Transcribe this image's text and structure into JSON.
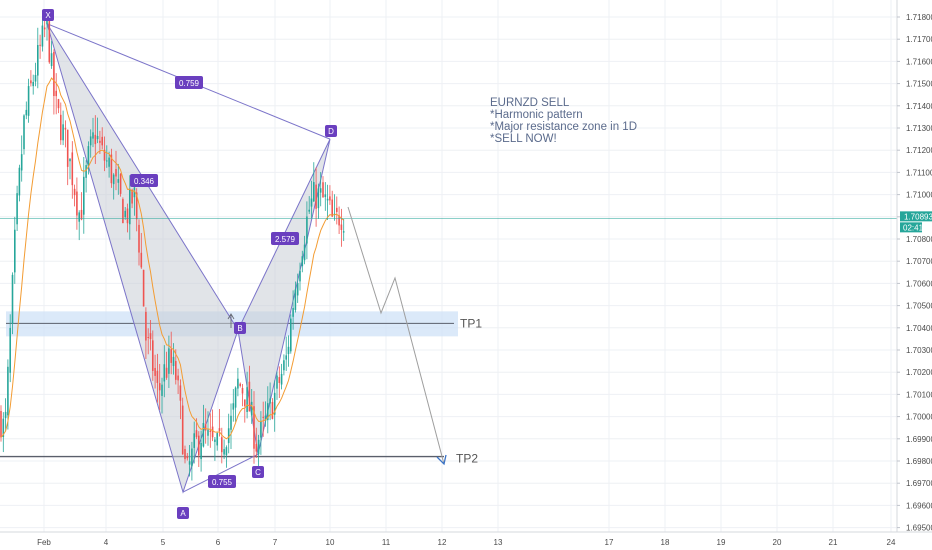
{
  "chart_data": {
    "type": "candlestick",
    "symbol": "EURNZD",
    "colors": {
      "up": "#26a69a",
      "down": "#ef5350",
      "pattern_line": "#7b74c9",
      "pattern_fill": "#c9cdd6",
      "label_bg": "#6a3fbf",
      "ema": "#f39c33",
      "tp_zone": "#cfe2f7",
      "price_line": "#26a69a",
      "forecast": "#9e9e9e",
      "target_arrow": "#3a73c6"
    },
    "x_ticks": [
      "Feb",
      "4",
      "5",
      "6",
      "7",
      "10",
      "11",
      "12",
      "13",
      "17",
      "18",
      "19",
      "20",
      "21",
      "24"
    ],
    "y_ticks": [
      "1.71800",
      "1.71700",
      "1.71600",
      "1.71500",
      "1.71400",
      "1.71300",
      "1.71200",
      "1.71100",
      "1.71000",
      "1.70900",
      "1.70800",
      "1.70700",
      "1.70600",
      "1.70500",
      "1.70400",
      "1.70300",
      "1.70200",
      "1.70100",
      "1.70000",
      "1.69900",
      "1.69800",
      "1.69700",
      "1.69600",
      "1.69500"
    ],
    "y_range": [
      1.695,
      1.7185
    ],
    "current_price": {
      "value": "1.70893",
      "countdown": "02:41"
    },
    "harmonic_points": [
      {
        "label": "X",
        "time": "2020-02-03 09:00",
        "price": 1.7177
      },
      {
        "label": "A",
        "time": "2020-02-05 22:00",
        "price": 1.6966
      },
      {
        "label": "B",
        "time": "2020-02-06 07:00",
        "price": 1.7039
      },
      {
        "label": "C",
        "time": "2020-02-06 20:00",
        "price": 1.6983
      },
      {
        "label": "D",
        "time": "2020-02-10 00:00",
        "price": 1.7125
      }
    ],
    "ratios": [
      {
        "text": "0.759",
        "between": "X-D"
      },
      {
        "text": "0.346",
        "between": "X-B"
      },
      {
        "text": "2.579",
        "between": "B-D"
      },
      {
        "text": "0.755",
        "between": "A-C"
      }
    ],
    "targets": [
      {
        "name": "TP1",
        "price": 1.7042
      },
      {
        "name": "TP2",
        "price": 1.6982
      }
    ],
    "annotation": [
      "EURNZD SELL",
      "*Harmonic pattern",
      "*Major resistance zone in 1D",
      "*SELL NOW!"
    ],
    "anchors": [
      {
        "x": 0,
        "price": 1.7
      },
      {
        "x": 5,
        "price": 1.6993
      },
      {
        "x": 10,
        "price": 1.7035
      },
      {
        "x": 16,
        "price": 1.7088
      },
      {
        "x": 24,
        "price": 1.7132
      },
      {
        "x": 32,
        "price": 1.715
      },
      {
        "x": 40,
        "price": 1.7165
      },
      {
        "x": 47,
        "price": 1.7177
      },
      {
        "x": 55,
        "price": 1.714
      },
      {
        "x": 63,
        "price": 1.7128
      },
      {
        "x": 72,
        "price": 1.711
      },
      {
        "x": 80,
        "price": 1.709
      },
      {
        "x": 88,
        "price": 1.7115
      },
      {
        "x": 95,
        "price": 1.7128
      },
      {
        "x": 102,
        "price": 1.7118
      },
      {
        "x": 110,
        "price": 1.7112
      },
      {
        "x": 118,
        "price": 1.71
      },
      {
        "x": 126,
        "price": 1.709
      },
      {
        "x": 134,
        "price": 1.71
      },
      {
        "x": 140,
        "price": 1.7075
      },
      {
        "x": 146,
        "price": 1.7035
      },
      {
        "x": 152,
        "price": 1.7025
      },
      {
        "x": 158,
        "price": 1.701
      },
      {
        "x": 164,
        "price": 1.702
      },
      {
        "x": 170,
        "price": 1.7025
      },
      {
        "x": 176,
        "price": 1.7018
      },
      {
        "x": 182,
        "price": 1.6995
      },
      {
        "x": 186,
        "price": 1.6972
      },
      {
        "x": 194,
        "price": 1.6985
      },
      {
        "x": 202,
        "price": 1.6993
      },
      {
        "x": 210,
        "price": 1.6988
      },
      {
        "x": 218,
        "price": 1.6985
      },
      {
        "x": 226,
        "price": 1.6993
      },
      {
        "x": 232,
        "price": 1.6998
      },
      {
        "x": 238,
        "price": 1.7015
      },
      {
        "x": 244,
        "price": 1.7012
      },
      {
        "x": 250,
        "price": 1.7003
      },
      {
        "x": 256,
        "price": 1.6988
      },
      {
        "x": 262,
        "price": 1.6993
      },
      {
        "x": 270,
        "price": 1.7003
      },
      {
        "x": 278,
        "price": 1.7014
      },
      {
        "x": 286,
        "price": 1.7025
      },
      {
        "x": 294,
        "price": 1.7055
      },
      {
        "x": 302,
        "price": 1.7078
      },
      {
        "x": 310,
        "price": 1.7095
      },
      {
        "x": 316,
        "price": 1.71
      },
      {
        "x": 322,
        "price": 1.7098
      },
      {
        "x": 328,
        "price": 1.7095
      },
      {
        "x": 334,
        "price": 1.7085
      },
      {
        "x": 340,
        "price": 1.7092
      },
      {
        "x": 346,
        "price": 1.7089
      }
    ]
  }
}
